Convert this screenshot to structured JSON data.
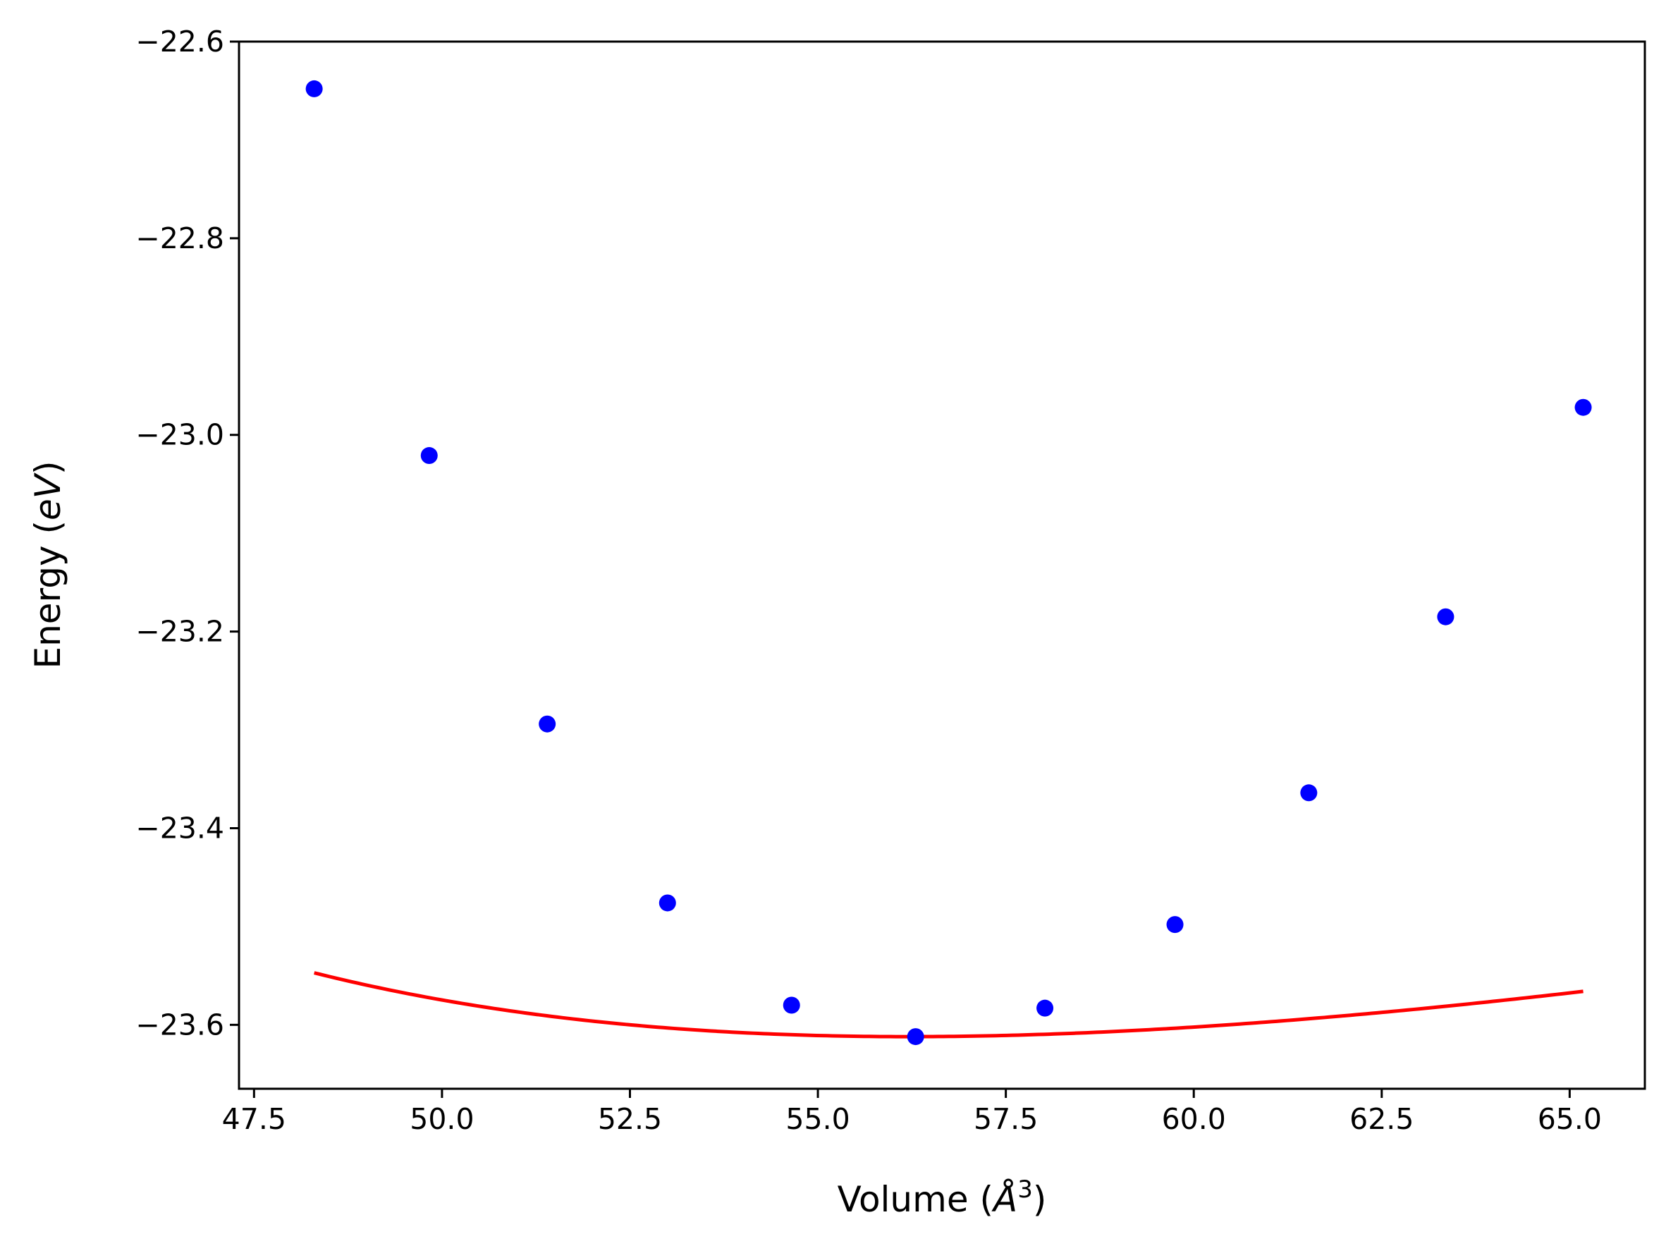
{
  "chart_data": {
    "type": "scatter",
    "xlabel": "Volume (Å³)",
    "ylabel": "Energy (eV)",
    "xlabel_parts": {
      "prefix": "Volume (",
      "unit_letter": "Å",
      "exponent": "3",
      "suffix": ")"
    },
    "ylabel_parts": {
      "prefix": "Energy (",
      "unit": "eV",
      "suffix": ")"
    },
    "xlim": [
      47.3,
      66.0
    ],
    "ylim": [
      -23.665,
      -22.6
    ],
    "x_ticks": [
      47.5,
      50.0,
      52.5,
      55.0,
      57.5,
      60.0,
      62.5,
      65.0
    ],
    "x_tick_labels": [
      "47.5",
      "50.0",
      "52.5",
      "55.0",
      "57.5",
      "60.0",
      "62.5",
      "65.0"
    ],
    "y_ticks": [
      -22.6,
      -22.8,
      -23.0,
      -23.2,
      -23.4,
      -23.6
    ],
    "y_tick_labels": [
      "−22.6",
      "−22.8",
      "−23.0",
      "−23.2",
      "−23.4",
      "−23.6"
    ],
    "grid": false,
    "series": [
      {
        "kind": "points",
        "color": "#0000ff",
        "x": [
          48.3,
          49.83,
          51.4,
          53.0,
          54.65,
          56.3,
          58.02,
          59.75,
          61.53,
          63.35,
          65.18
        ],
        "y": [
          -22.648,
          -23.021,
          -23.294,
          -23.476,
          -23.58,
          -23.612,
          -23.583,
          -23.498,
          -23.364,
          -23.185,
          -22.972
        ]
      },
      {
        "kind": "fit_line",
        "color": "#ff0000",
        "x_range": [
          48.3,
          65.18
        ],
        "fit": {
          "E0": -23.612,
          "V0": 56.2,
          "B0": 0.0863,
          "B0_prime": 5.0
        }
      }
    ]
  }
}
